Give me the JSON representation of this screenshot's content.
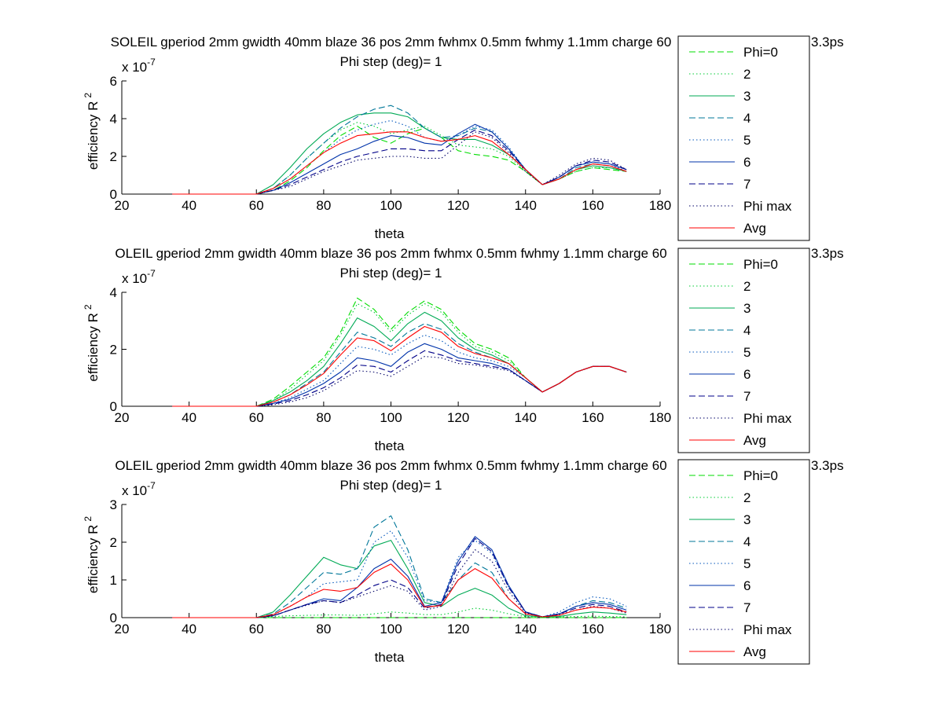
{
  "legend_title_clipped_suffix": "3.3ps",
  "chart_data": [
    {
      "type": "line",
      "title": "SOLEIL gperiod 2mm gwidth 40mm blaze 36 pos 2mm fwhmx 0.5mm fwhmy 1.1mm charge 60",
      "subtitle": "Phi step (deg)= 1",
      "xlabel": "theta",
      "ylabel": "efficiency R",
      "ylabel_sup": "2",
      "exponent": "x 10",
      "exponent_sup": "-7",
      "xlim": [
        20,
        180
      ],
      "ylim": [
        0,
        6
      ],
      "xticks": [
        "20",
        "40",
        "60",
        "80",
        "100",
        "120",
        "140",
        "160",
        "180"
      ],
      "yticks": [
        "0",
        "2",
        "4",
        "6"
      ],
      "grid": false,
      "legend_position": "right",
      "x": [
        35,
        40,
        45,
        50,
        55,
        60,
        65,
        70,
        75,
        80,
        85,
        90,
        95,
        100,
        105,
        110,
        115,
        120,
        125,
        130,
        135,
        140,
        145,
        150,
        155,
        160,
        165,
        170
      ],
      "series": [
        {
          "name": "Phi=0",
          "color": "#00dd00",
          "dash": "dashed",
          "values": [
            0,
            0,
            0,
            0,
            0,
            0,
            0.2,
            0.7,
            1.4,
            2.3,
            3.1,
            3.6,
            3.0,
            2.7,
            3.2,
            3.5,
            3.0,
            2.3,
            2.1,
            2.0,
            1.8,
            1.2,
            0.5,
            0.8,
            1.2,
            1.4,
            1.3,
            1.2
          ]
        },
        {
          "name": "2",
          "color": "#00cc33",
          "dash": "dotted",
          "values": [
            0,
            0,
            0,
            0,
            0,
            0,
            0.3,
            1.0,
            1.9,
            2.7,
            3.4,
            3.8,
            3.6,
            3.2,
            3.4,
            3.6,
            3.1,
            2.6,
            2.5,
            2.4,
            2.0,
            1.2,
            0.5,
            0.8,
            1.2,
            1.4,
            1.4,
            1.2
          ]
        },
        {
          "name": "3",
          "color": "#00aa55",
          "dash": "solid",
          "values": [
            0,
            0,
            0,
            0,
            0,
            0,
            0.5,
            1.4,
            2.4,
            3.2,
            3.8,
            4.2,
            4.3,
            4.3,
            4.1,
            3.5,
            3.0,
            2.9,
            2.9,
            2.6,
            2.1,
            1.3,
            0.5,
            0.8,
            1.3,
            1.5,
            1.4,
            1.2
          ]
        },
        {
          "name": "4",
          "color": "#007799",
          "dash": "dashed",
          "values": [
            0,
            0,
            0,
            0,
            0,
            0,
            0.3,
            1.0,
            1.9,
            2.7,
            3.5,
            4.1,
            4.5,
            4.7,
            4.3,
            3.5,
            3.0,
            3.1,
            3.5,
            3.3,
            2.4,
            1.3,
            0.5,
            0.8,
            1.4,
            1.6,
            1.5,
            1.2
          ]
        },
        {
          "name": "5",
          "color": "#0055bb",
          "dash": "dotted",
          "values": [
            0,
            0,
            0,
            0,
            0,
            0,
            0.3,
            0.8,
            1.5,
            2.2,
            2.9,
            3.4,
            3.7,
            3.9,
            3.6,
            3.0,
            2.8,
            3.1,
            3.6,
            3.4,
            2.5,
            1.3,
            0.5,
            0.9,
            1.5,
            1.7,
            1.6,
            1.2
          ]
        },
        {
          "name": "6",
          "color": "#0033aa",
          "dash": "solid",
          "values": [
            0,
            0,
            0,
            0,
            0,
            0,
            0.2,
            0.6,
            1.1,
            1.6,
            2.1,
            2.4,
            2.8,
            3.1,
            3.0,
            2.7,
            2.6,
            3.2,
            3.7,
            3.3,
            2.4,
            1.3,
            0.5,
            0.9,
            1.5,
            1.7,
            1.6,
            1.3
          ]
        },
        {
          "name": "7",
          "color": "#000088",
          "dash": "dashed",
          "values": [
            0,
            0,
            0,
            0,
            0,
            0,
            0.2,
            0.5,
            0.9,
            1.3,
            1.7,
            2.0,
            2.2,
            2.4,
            2.4,
            2.3,
            2.3,
            2.9,
            3.4,
            3.1,
            2.3,
            1.3,
            0.5,
            0.9,
            1.5,
            1.8,
            1.7,
            1.3
          ]
        },
        {
          "name": "Phi max",
          "color": "#000066",
          "dash": "dotted",
          "values": [
            0,
            0,
            0,
            0,
            0,
            0,
            0.2,
            0.4,
            0.8,
            1.2,
            1.5,
            1.8,
            1.9,
            2.0,
            2.0,
            1.9,
            1.9,
            2.6,
            3.3,
            3.0,
            2.2,
            1.2,
            0.5,
            1.0,
            1.6,
            1.9,
            1.8,
            1.3
          ]
        },
        {
          "name": "Avg",
          "color": "#ff0000",
          "dash": "solid",
          "values": [
            0,
            0,
            0,
            0,
            0,
            0,
            0.3,
            0.8,
            1.5,
            2.2,
            2.7,
            3.1,
            3.2,
            3.3,
            3.3,
            3.0,
            2.8,
            2.9,
            3.1,
            2.8,
            2.1,
            1.3,
            0.5,
            0.8,
            1.3,
            1.6,
            1.5,
            1.2
          ]
        }
      ]
    },
    {
      "type": "line",
      "title": "OLEIL gperiod 2mm gwidth 40mm blaze 36 pos 2mm fwhmx 0.5mm fwhmy 1.1mm charge 60",
      "subtitle": "Phi step (deg)= 1",
      "xlabel": "theta",
      "ylabel": "efficiency R",
      "ylabel_sup": "2",
      "exponent": "x 10",
      "exponent_sup": "-7",
      "xlim": [
        20,
        180
      ],
      "ylim": [
        0,
        4
      ],
      "xticks": [
        "20",
        "40",
        "60",
        "80",
        "100",
        "120",
        "140",
        "160",
        "180"
      ],
      "yticks": [
        "0",
        "2",
        "4"
      ],
      "grid": false,
      "legend_position": "right",
      "x": [
        35,
        40,
        45,
        50,
        55,
        60,
        65,
        70,
        75,
        80,
        85,
        90,
        95,
        100,
        105,
        110,
        115,
        120,
        125,
        130,
        135,
        140,
        145,
        150,
        155,
        160,
        165,
        170
      ],
      "series": [
        {
          "name": "Phi=0",
          "color": "#00dd00",
          "dash": "dashed",
          "values": [
            0,
            0,
            0,
            0,
            0,
            0,
            0.25,
            0.7,
            1.2,
            1.7,
            2.6,
            3.8,
            3.4,
            2.7,
            3.3,
            3.7,
            3.4,
            2.7,
            2.2,
            2.0,
            1.7,
            1.0,
            0.5,
            0.8,
            1.2,
            1.4,
            1.4,
            1.2
          ]
        },
        {
          "name": "2",
          "color": "#00cc33",
          "dash": "dotted",
          "values": [
            0,
            0,
            0,
            0,
            0,
            0,
            0.2,
            0.6,
            1.1,
            1.6,
            2.5,
            3.6,
            3.3,
            2.6,
            3.2,
            3.6,
            3.3,
            2.6,
            2.1,
            1.9,
            1.6,
            1.0,
            0.5,
            0.8,
            1.2,
            1.4,
            1.4,
            1.2
          ]
        },
        {
          "name": "3",
          "color": "#00aa55",
          "dash": "solid",
          "values": [
            0,
            0,
            0,
            0,
            0,
            0,
            0.2,
            0.5,
            0.9,
            1.4,
            2.2,
            3.1,
            2.8,
            2.3,
            2.9,
            3.3,
            3.0,
            2.4,
            2.0,
            1.8,
            1.5,
            1.0,
            0.5,
            0.8,
            1.2,
            1.4,
            1.4,
            1.2
          ]
        },
        {
          "name": "4",
          "color": "#007799",
          "dash": "dashed",
          "values": [
            0,
            0,
            0,
            0,
            0,
            0,
            0.15,
            0.4,
            0.8,
            1.2,
            1.9,
            2.6,
            2.4,
            2.1,
            2.6,
            2.9,
            2.7,
            2.2,
            1.9,
            1.7,
            1.5,
            1.0,
            0.5,
            0.8,
            1.2,
            1.4,
            1.4,
            1.2
          ]
        },
        {
          "name": "5",
          "color": "#0055bb",
          "dash": "dotted",
          "values": [
            0,
            0,
            0,
            0,
            0,
            0,
            0.1,
            0.3,
            0.6,
            0.9,
            1.5,
            2.1,
            2.0,
            1.8,
            2.2,
            2.5,
            2.3,
            1.9,
            1.7,
            1.6,
            1.4,
            1.0,
            0.5,
            0.8,
            1.2,
            1.4,
            1.4,
            1.2
          ]
        },
        {
          "name": "6",
          "color": "#0033aa",
          "dash": "solid",
          "values": [
            0,
            0,
            0,
            0,
            0,
            0,
            0.1,
            0.25,
            0.5,
            0.8,
            1.2,
            1.7,
            1.6,
            1.4,
            1.9,
            2.2,
            2.0,
            1.7,
            1.6,
            1.5,
            1.3,
            0.9,
            0.5,
            0.8,
            1.2,
            1.4,
            1.4,
            1.2
          ]
        },
        {
          "name": "7",
          "color": "#000088",
          "dash": "dashed",
          "values": [
            0,
            0,
            0,
            0,
            0,
            0,
            0.08,
            0.2,
            0.4,
            0.65,
            1.0,
            1.45,
            1.4,
            1.2,
            1.6,
            1.95,
            1.8,
            1.6,
            1.5,
            1.4,
            1.3,
            0.9,
            0.5,
            0.8,
            1.2,
            1.4,
            1.4,
            1.2
          ]
        },
        {
          "name": "Phi max",
          "color": "#000066",
          "dash": "dotted",
          "values": [
            0,
            0,
            0,
            0,
            0,
            0,
            0.05,
            0.15,
            0.3,
            0.55,
            0.9,
            1.25,
            1.2,
            1.05,
            1.4,
            1.75,
            1.7,
            1.5,
            1.45,
            1.35,
            1.25,
            0.9,
            0.5,
            0.8,
            1.2,
            1.4,
            1.4,
            1.2
          ]
        },
        {
          "name": "Avg",
          "color": "#ff0000",
          "dash": "solid",
          "values": [
            0,
            0,
            0,
            0,
            0,
            0,
            0.15,
            0.4,
            0.75,
            1.15,
            1.8,
            2.4,
            2.3,
            1.95,
            2.4,
            2.8,
            2.6,
            2.1,
            1.85,
            1.7,
            1.5,
            1.0,
            0.5,
            0.8,
            1.2,
            1.4,
            1.4,
            1.2
          ]
        }
      ]
    },
    {
      "type": "line",
      "title": "OLEIL gperiod 2mm gwidth 40mm blaze 36 pos 2mm fwhmx 0.5mm fwhmy 1.1mm charge 60",
      "subtitle": "Phi step (deg)= 1",
      "xlabel": "theta",
      "ylabel": "efficiency R",
      "ylabel_sup": "2",
      "exponent": "x 10",
      "exponent_sup": "-7",
      "xlim": [
        20,
        180
      ],
      "ylim": [
        0,
        3
      ],
      "xticks": [
        "20",
        "40",
        "60",
        "80",
        "100",
        "120",
        "140",
        "160",
        "180"
      ],
      "yticks": [
        "0",
        "1",
        "2",
        "3"
      ],
      "grid": false,
      "legend_position": "right",
      "x": [
        35,
        40,
        45,
        50,
        55,
        60,
        65,
        70,
        75,
        80,
        85,
        90,
        95,
        100,
        105,
        110,
        115,
        120,
        125,
        130,
        135,
        140,
        145,
        150,
        155,
        160,
        165,
        170
      ],
      "series": [
        {
          "name": "Phi=0",
          "color": "#00dd00",
          "dash": "dashed",
          "values": [
            0,
            0,
            0,
            0,
            0,
            0,
            0,
            0,
            0,
            0,
            0,
            0,
            0,
            0,
            0,
            0,
            0,
            0,
            0,
            0,
            0,
            0,
            0,
            0,
            0,
            0,
            0,
            0
          ]
        },
        {
          "name": "2",
          "color": "#00cc33",
          "dash": "dotted",
          "values": [
            0,
            0,
            0,
            0,
            0,
            0,
            0.03,
            0.05,
            0.06,
            0.07,
            0.07,
            0.06,
            0.1,
            0.15,
            0.12,
            0.08,
            0.08,
            0.15,
            0.25,
            0.2,
            0.1,
            0.03,
            0.02,
            0.02,
            0.03,
            0.04,
            0.03,
            0.02
          ]
        },
        {
          "name": "3",
          "color": "#00aa55",
          "dash": "solid",
          "values": [
            0,
            0,
            0,
            0,
            0,
            0,
            0.15,
            0.6,
            1.1,
            1.6,
            1.4,
            1.3,
            1.9,
            2.05,
            1.3,
            0.4,
            0.3,
            0.6,
            0.78,
            0.6,
            0.25,
            0.05,
            0.02,
            0.03,
            0.1,
            0.15,
            0.12,
            0.08
          ]
        },
        {
          "name": "4",
          "color": "#007799",
          "dash": "dashed",
          "values": [
            0,
            0,
            0,
            0,
            0,
            0,
            0.1,
            0.4,
            0.8,
            1.2,
            1.15,
            1.3,
            2.4,
            2.7,
            1.8,
            0.5,
            0.4,
            1.0,
            1.45,
            1.2,
            0.5,
            0.1,
            0.02,
            0.1,
            0.3,
            0.45,
            0.4,
            0.25
          ]
        },
        {
          "name": "5",
          "color": "#0055bb",
          "dash": "dotted",
          "values": [
            0,
            0,
            0,
            0,
            0,
            0,
            0.07,
            0.3,
            0.55,
            0.9,
            0.95,
            1.0,
            2.0,
            2.3,
            1.6,
            0.45,
            0.4,
            1.6,
            2.05,
            1.7,
            0.8,
            0.15,
            0.02,
            0.15,
            0.4,
            0.55,
            0.5,
            0.3
          ]
        },
        {
          "name": "6",
          "color": "#0033aa",
          "dash": "solid",
          "values": [
            0,
            0,
            0,
            0,
            0,
            0,
            0.05,
            0.2,
            0.35,
            0.5,
            0.45,
            0.8,
            1.3,
            1.55,
            1.1,
            0.3,
            0.4,
            1.5,
            2.15,
            1.8,
            0.85,
            0.15,
            0.02,
            0.1,
            0.3,
            0.4,
            0.35,
            0.2
          ]
        },
        {
          "name": "7",
          "color": "#000088",
          "dash": "dashed",
          "values": [
            0,
            0,
            0,
            0,
            0,
            0,
            0.05,
            0.2,
            0.35,
            0.45,
            0.4,
            0.6,
            0.85,
            1.0,
            0.8,
            0.25,
            0.35,
            1.4,
            2.1,
            1.75,
            0.8,
            0.15,
            0.02,
            0.1,
            0.25,
            0.35,
            0.3,
            0.15
          ]
        },
        {
          "name": "Phi max",
          "color": "#000066",
          "dash": "dotted",
          "values": [
            0,
            0,
            0,
            0,
            0,
            0,
            0.05,
            0.2,
            0.33,
            0.45,
            0.4,
            0.55,
            0.7,
            0.85,
            0.7,
            0.2,
            0.3,
            1.2,
            1.8,
            1.5,
            0.7,
            0.12,
            0.02,
            0.08,
            0.2,
            0.3,
            0.25,
            0.12
          ]
        },
        {
          "name": "Avg",
          "color": "#ff0000",
          "dash": "solid",
          "values": [
            0,
            0,
            0,
            0,
            0,
            0,
            0.08,
            0.3,
            0.55,
            0.75,
            0.7,
            0.8,
            1.2,
            1.42,
            1.0,
            0.28,
            0.32,
            1.0,
            1.3,
            1.05,
            0.5,
            0.1,
            0.02,
            0.06,
            0.2,
            0.28,
            0.25,
            0.15
          ]
        }
      ]
    }
  ]
}
